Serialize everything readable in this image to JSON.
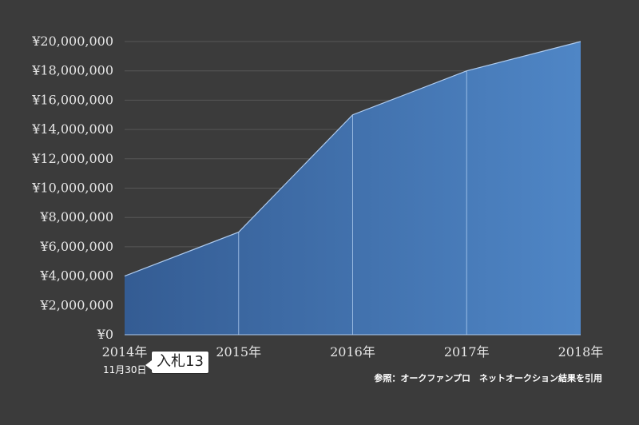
{
  "chart_data": {
    "type": "area",
    "title": "",
    "xlabel": "",
    "ylabel": "",
    "categories": [
      "2014年",
      "2015年",
      "2016年",
      "2017年",
      "2018年"
    ],
    "series": [
      {
        "values": [
          4000000,
          7000000,
          15000000,
          18000000,
          20000000
        ]
      }
    ],
    "ylim": [
      0,
      20000000
    ],
    "yticks": [
      "¥0",
      "¥2,000,000",
      "¥4,000,000",
      "¥6,000,000",
      "¥8,000,000",
      "¥10,000,000",
      "¥12,000,000",
      "¥14,000,000",
      "¥16,000,000",
      "¥18,000,000",
      "¥20,000,000"
    ],
    "grid": true,
    "colors": {
      "fill_start": "#345c93",
      "fill_end": "#4f86c6",
      "line": "#aecbef",
      "background": "#3b3b3b",
      "grid": "#575757"
    }
  },
  "annotation": {
    "date": "11月30日",
    "bid_label": "入札13"
  },
  "source_note": "参照：オークファンプロ　ネットオークション結果を引用"
}
